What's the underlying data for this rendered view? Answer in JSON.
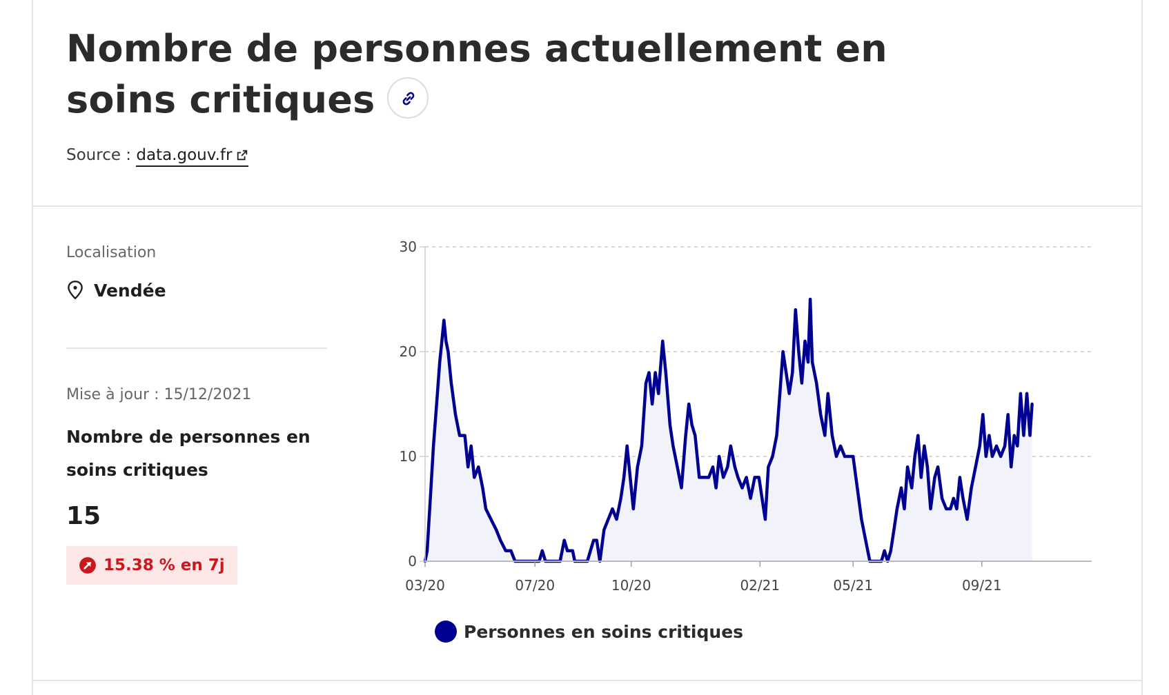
{
  "header": {
    "title": "Nombre de personnes actuellement en soins critiques",
    "source_label": "Source : ",
    "source_link": "data.gouv.fr"
  },
  "sidebar": {
    "location_label": "Localisation",
    "location_value": "Vendée",
    "update_label": "Mise à jour : 15/12/2021",
    "indicator_label": "Nombre de personnes en soins critiques",
    "indicator_value": "15",
    "trend_badge": "15.38 % en 7j"
  },
  "colors": {
    "series": "#000091",
    "badge_bg": "#fbe7e6",
    "badge_text": "#c9191e"
  },
  "chart_data": {
    "type": "area",
    "title": "",
    "xlabel": "",
    "ylabel": "",
    "xlim": [
      "2020-03-18",
      "2021-12-15"
    ],
    "ylim": [
      0,
      30
    ],
    "yticks": [
      0,
      10,
      20,
      30
    ],
    "xtick_labels": [
      "03/20",
      "07/20",
      "10/20",
      "02/21",
      "05/21",
      "09/21"
    ],
    "grid": true,
    "legend_position": "bottom",
    "series": [
      {
        "name": "Personnes en soins critiques",
        "color": "#000091",
        "points": [
          [
            "2020-03-18",
            0
          ],
          [
            "2020-03-20",
            1
          ],
          [
            "2020-03-23",
            6
          ],
          [
            "2020-03-26",
            11
          ],
          [
            "2020-03-29",
            15
          ],
          [
            "2020-04-01",
            19
          ],
          [
            "2020-04-03",
            21
          ],
          [
            "2020-04-05",
            23
          ],
          [
            "2020-04-07",
            21
          ],
          [
            "2020-04-09",
            20
          ],
          [
            "2020-04-12",
            17
          ],
          [
            "2020-04-16",
            14
          ],
          [
            "2020-04-20",
            12
          ],
          [
            "2020-04-25",
            12
          ],
          [
            "2020-04-28",
            9
          ],
          [
            "2020-05-01",
            11
          ],
          [
            "2020-05-04",
            8
          ],
          [
            "2020-05-08",
            9
          ],
          [
            "2020-05-12",
            7
          ],
          [
            "2020-05-15",
            5
          ],
          [
            "2020-05-20",
            4
          ],
          [
            "2020-05-25",
            3
          ],
          [
            "2020-05-29",
            2
          ],
          [
            "2020-06-03",
            1
          ],
          [
            "2020-06-08",
            1
          ],
          [
            "2020-06-12",
            0
          ],
          [
            "2020-07-05",
            0
          ],
          [
            "2020-07-08",
            1
          ],
          [
            "2020-07-11",
            0
          ],
          [
            "2020-07-25",
            0
          ],
          [
            "2020-07-29",
            2
          ],
          [
            "2020-08-01",
            1
          ],
          [
            "2020-08-06",
            1
          ],
          [
            "2020-08-08",
            0
          ],
          [
            "2020-08-20",
            0
          ],
          [
            "2020-08-23",
            1
          ],
          [
            "2020-08-26",
            2
          ],
          [
            "2020-08-29",
            2
          ],
          [
            "2020-09-01",
            0
          ],
          [
            "2020-09-05",
            3
          ],
          [
            "2020-09-09",
            4
          ],
          [
            "2020-09-13",
            5
          ],
          [
            "2020-09-17",
            4
          ],
          [
            "2020-09-21",
            6
          ],
          [
            "2020-09-24",
            8
          ],
          [
            "2020-09-27",
            11
          ],
          [
            "2020-09-30",
            8
          ],
          [
            "2020-10-03",
            5
          ],
          [
            "2020-10-07",
            9
          ],
          [
            "2020-10-11",
            11
          ],
          [
            "2020-10-15",
            17
          ],
          [
            "2020-10-18",
            18
          ],
          [
            "2020-10-21",
            15
          ],
          [
            "2020-10-24",
            18
          ],
          [
            "2020-10-27",
            16
          ],
          [
            "2020-10-31",
            21
          ],
          [
            "2020-11-03",
            18
          ],
          [
            "2020-11-07",
            13
          ],
          [
            "2020-11-10",
            11
          ],
          [
            "2020-11-14",
            9
          ],
          [
            "2020-11-18",
            7
          ],
          [
            "2020-11-22",
            12
          ],
          [
            "2020-11-25",
            15
          ],
          [
            "2020-11-28",
            13
          ],
          [
            "2020-12-01",
            12
          ],
          [
            "2020-12-05",
            8
          ],
          [
            "2020-12-09",
            8
          ],
          [
            "2020-12-14",
            8
          ],
          [
            "2020-12-18",
            9
          ],
          [
            "2020-12-21",
            7
          ],
          [
            "2020-12-24",
            10
          ],
          [
            "2020-12-28",
            8
          ],
          [
            "2021-01-01",
            9
          ],
          [
            "2021-01-04",
            11
          ],
          [
            "2021-01-08",
            9
          ],
          [
            "2021-01-11",
            8
          ],
          [
            "2021-01-15",
            7
          ],
          [
            "2021-01-19",
            8
          ],
          [
            "2021-01-23",
            6
          ],
          [
            "2021-01-27",
            8
          ],
          [
            "2021-01-31",
            8
          ],
          [
            "2021-02-03",
            6
          ],
          [
            "2021-02-06",
            4
          ],
          [
            "2021-02-09",
            9
          ],
          [
            "2021-02-13",
            10
          ],
          [
            "2021-02-17",
            12
          ],
          [
            "2021-02-20",
            16
          ],
          [
            "2021-02-23",
            20
          ],
          [
            "2021-02-26",
            18
          ],
          [
            "2021-03-01",
            16
          ],
          [
            "2021-03-04",
            18
          ],
          [
            "2021-03-07",
            24
          ],
          [
            "2021-03-10",
            20
          ],
          [
            "2021-03-13",
            17
          ],
          [
            "2021-03-16",
            21
          ],
          [
            "2021-03-19",
            19
          ],
          [
            "2021-03-21",
            25
          ],
          [
            "2021-03-23",
            19
          ],
          [
            "2021-03-27",
            17
          ],
          [
            "2021-03-31",
            14
          ],
          [
            "2021-04-04",
            12
          ],
          [
            "2021-04-07",
            16
          ],
          [
            "2021-04-11",
            12
          ],
          [
            "2021-04-15",
            10
          ],
          [
            "2021-04-19",
            11
          ],
          [
            "2021-04-23",
            10
          ],
          [
            "2021-04-27",
            10
          ],
          [
            "2021-05-01",
            10
          ],
          [
            "2021-05-05",
            7
          ],
          [
            "2021-05-09",
            4
          ],
          [
            "2021-05-13",
            2
          ],
          [
            "2021-05-17",
            0
          ],
          [
            "2021-05-28",
            0
          ],
          [
            "2021-05-31",
            1
          ],
          [
            "2021-06-03",
            0
          ],
          [
            "2021-06-06",
            1
          ],
          [
            "2021-06-09",
            3
          ],
          [
            "2021-06-12",
            5
          ],
          [
            "2021-06-16",
            7
          ],
          [
            "2021-06-19",
            5
          ],
          [
            "2021-06-22",
            9
          ],
          [
            "2021-06-26",
            7
          ],
          [
            "2021-06-29",
            10
          ],
          [
            "2021-07-02",
            12
          ],
          [
            "2021-07-05",
            8
          ],
          [
            "2021-07-08",
            11
          ],
          [
            "2021-07-11",
            9
          ],
          [
            "2021-07-14",
            5
          ],
          [
            "2021-07-18",
            8
          ],
          [
            "2021-07-21",
            9
          ],
          [
            "2021-07-25",
            6
          ],
          [
            "2021-07-29",
            5
          ],
          [
            "2021-08-02",
            5
          ],
          [
            "2021-08-05",
            6
          ],
          [
            "2021-08-08",
            5
          ],
          [
            "2021-08-11",
            8
          ],
          [
            "2021-08-14",
            6
          ],
          [
            "2021-08-18",
            4
          ],
          [
            "2021-08-22",
            7
          ],
          [
            "2021-08-26",
            9
          ],
          [
            "2021-08-30",
            11
          ],
          [
            "2021-09-02",
            14
          ],
          [
            "2021-09-05",
            10
          ],
          [
            "2021-09-08",
            12
          ],
          [
            "2021-09-11",
            10
          ],
          [
            "2021-09-15",
            11
          ],
          [
            "2021-09-19",
            10
          ],
          [
            "2021-09-23",
            11
          ],
          [
            "2021-09-26",
            14
          ],
          [
            "2021-09-29",
            9
          ],
          [
            "2021-10-02",
            12
          ],
          [
            "2021-10-05",
            11
          ],
          [
            "2021-10-08",
            16
          ],
          [
            "2021-10-11",
            12
          ],
          [
            "2021-10-14",
            16
          ],
          [
            "2021-10-17",
            12
          ],
          [
            "2021-10-19",
            15
          ]
        ]
      }
    ]
  }
}
